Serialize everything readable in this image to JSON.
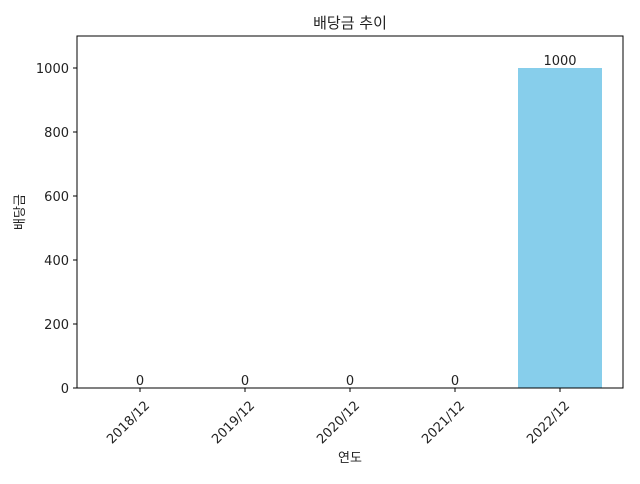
{
  "chart_data": {
    "type": "bar",
    "title": "배당금 추이",
    "xlabel": "연도",
    "ylabel": "배당금",
    "categories": [
      "2018/12",
      "2019/12",
      "2020/12",
      "2021/12",
      "2022/12"
    ],
    "values": [
      0,
      0,
      0,
      0,
      1000
    ],
    "data_labels": [
      "0",
      "0",
      "0",
      "0",
      "1000"
    ],
    "ylim": [
      0,
      1100
    ],
    "yticks": [
      0,
      200,
      400,
      600,
      800,
      1000
    ],
    "ytick_labels": [
      "0",
      "200",
      "400",
      "600",
      "800",
      "1000"
    ],
    "grid": false,
    "bar_color": "#87CEEB",
    "xtick_rotation_deg": 45
  }
}
